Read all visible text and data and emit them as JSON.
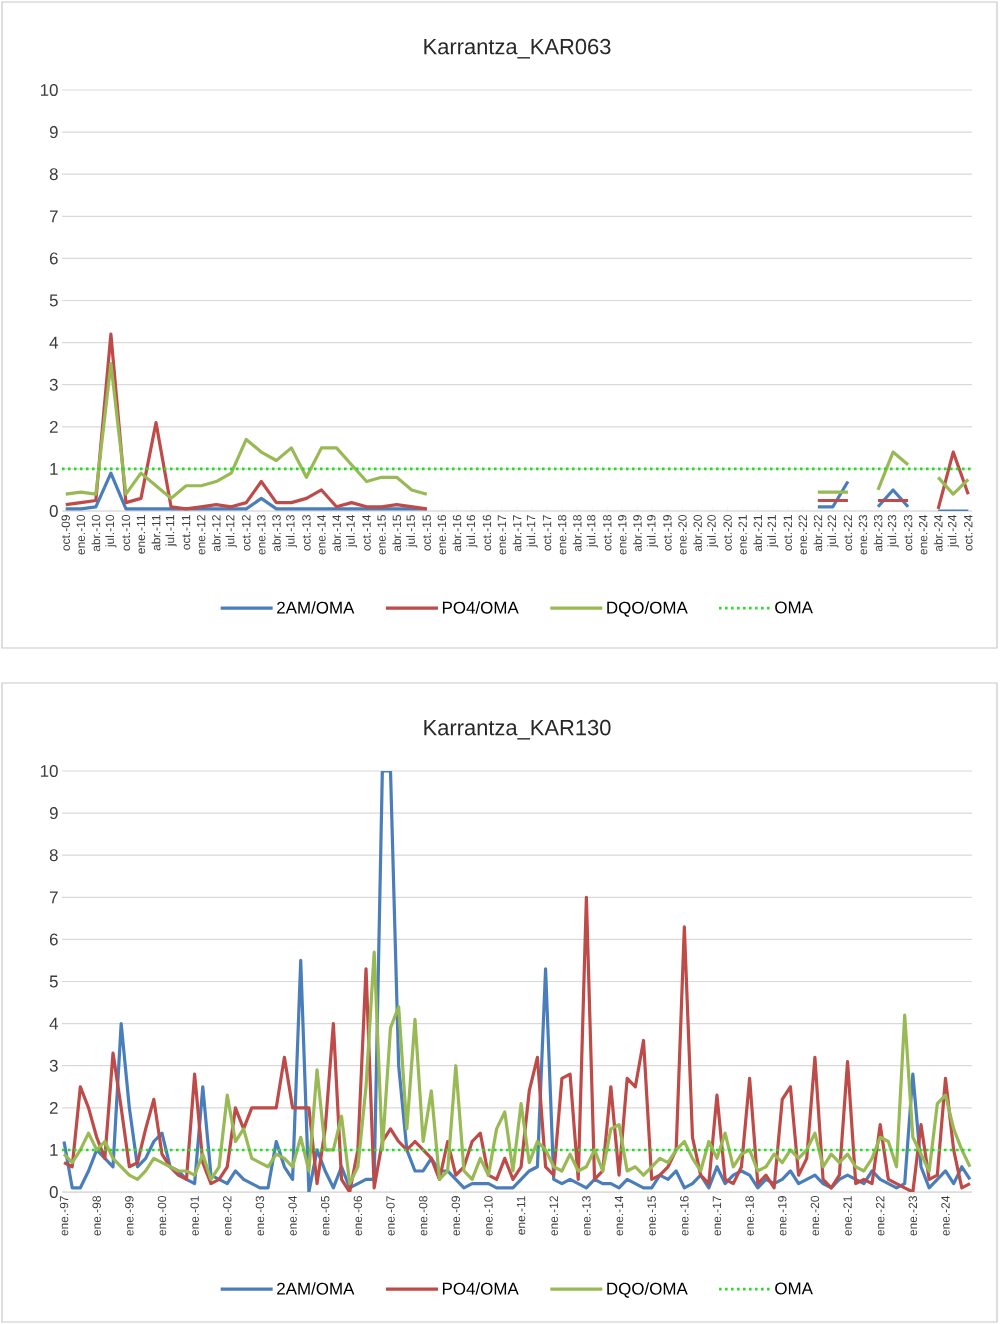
{
  "chart_data": [
    {
      "type": "line",
      "title": "Karrantza_KAR063",
      "categories": [
        "oct.-09",
        "ene.-10",
        "abr.-10",
        "jul.-10",
        "oct.-10",
        "ene.-11",
        "abr.-11",
        "jul.-11",
        "oct.-11",
        "ene.-12",
        "abr.-12",
        "jul.-12",
        "oct.-12",
        "ene.-13",
        "abr.-13",
        "jul.-13",
        "oct.-13",
        "ene.-14",
        "abr.-14",
        "jul.-14",
        "oct.-14",
        "ene.-15",
        "abr.-15",
        "jul.-15",
        "oct.-15",
        "ene.-16",
        "abr.-16",
        "jul.-16",
        "oct.-16",
        "ene.-17",
        "abr.-17",
        "jul.-17",
        "oct.-17",
        "ene.-18",
        "abr.-18",
        "jul.-18",
        "oct.-18",
        "ene.-19",
        "abr.-19",
        "jul.-19",
        "oct.-19",
        "ene.-20",
        "abr.-20",
        "jul.-20",
        "oct.-20",
        "ene.-21",
        "abr.-21",
        "jul.-21",
        "oct.-21",
        "ene.-22",
        "abr.-22",
        "jul.-22",
        "oct.-22",
        "ene.-23",
        "abr.-23",
        "jul.-23",
        "oct.-23",
        "ene.-24",
        "abr.-24",
        "jul.-24",
        "oct.-24"
      ],
      "series": [
        {
          "name": "2AM/OMA",
          "color": "#4a7ebb",
          "values": [
            0.05,
            0.05,
            0.1,
            0.9,
            0.05,
            0.05,
            0.05,
            0.05,
            0.05,
            0.05,
            0.05,
            0.05,
            0.05,
            0.3,
            0.05,
            0.05,
            0.05,
            0.05,
            0.05,
            0.05,
            0.05,
            0.05,
            0.05,
            0.05,
            0.05,
            null,
            null,
            null,
            null,
            null,
            null,
            null,
            null,
            null,
            null,
            null,
            null,
            null,
            null,
            null,
            null,
            null,
            null,
            null,
            null,
            null,
            null,
            null,
            null,
            null,
            0.1,
            0.1,
            0.7,
            null,
            0.1,
            0.5,
            0.1,
            null,
            0,
            0,
            0
          ]
        },
        {
          "name": "PO4/OMA",
          "color": "#be4b48",
          "values": [
            0.15,
            0.2,
            0.25,
            4.2,
            0.2,
            0.3,
            2.1,
            0.1,
            0.05,
            0.1,
            0.15,
            0.1,
            0.2,
            0.7,
            0.2,
            0.2,
            0.3,
            0.5,
            0.1,
            0.2,
            0.1,
            0.1,
            0.15,
            0.1,
            0.05,
            null,
            null,
            null,
            null,
            null,
            null,
            null,
            null,
            null,
            null,
            null,
            null,
            null,
            null,
            null,
            null,
            null,
            null,
            null,
            null,
            null,
            null,
            null,
            null,
            null,
            0.25,
            0.25,
            0.25,
            null,
            0.25,
            0.25,
            0.25,
            null,
            0.05,
            1.4,
            0.4
          ]
        },
        {
          "name": "DQO/OMA",
          "color": "#98b954",
          "values": [
            0.4,
            0.45,
            0.4,
            3.5,
            0.4,
            0.9,
            0.6,
            0.3,
            0.6,
            0.6,
            0.7,
            0.9,
            1.7,
            1.4,
            1.2,
            1.5,
            0.8,
            1.5,
            1.5,
            1.1,
            0.7,
            0.8,
            0.8,
            0.5,
            0.4,
            null,
            null,
            null,
            null,
            null,
            null,
            null,
            null,
            null,
            null,
            null,
            null,
            null,
            null,
            null,
            null,
            null,
            null,
            null,
            null,
            null,
            null,
            null,
            null,
            null,
            0.45,
            0.45,
            0.45,
            null,
            0.5,
            1.4,
            1.1,
            null,
            0.8,
            0.4,
            0.75
          ]
        }
      ],
      "ylim": [
        0,
        10
      ],
      "yticks": [
        0,
        1,
        2,
        3,
        4,
        5,
        6,
        7,
        8,
        9,
        10
      ],
      "grid": "y",
      "legend": "bottom",
      "line_style": "solid",
      "ref_lines": [
        {
          "axis": "y",
          "value": 1,
          "label": "OMA",
          "color": "#22dd22",
          "line_style": "dotted"
        }
      ]
    },
    {
      "type": "line",
      "title": "Karrantza_KAR130",
      "categories": [
        "ene.-97",
        null,
        null,
        null,
        "ene.-98",
        null,
        null,
        null,
        "ene.-99",
        null,
        null,
        null,
        "ene.-00",
        null,
        null,
        null,
        "ene.-01",
        null,
        null,
        null,
        "ene.-02",
        null,
        null,
        null,
        "ene.-03",
        null,
        null,
        null,
        "ene.-04",
        null,
        null,
        null,
        "ene.-05",
        null,
        null,
        null,
        "ene.-06",
        null,
        null,
        null,
        "ene.-07",
        null,
        null,
        null,
        "ene.-08",
        null,
        null,
        null,
        "ene.-09",
        null,
        null,
        null,
        "ene.-10",
        null,
        null,
        null,
        "ene.-11",
        null,
        null,
        null,
        "ene.-12",
        null,
        null,
        null,
        "ene.-13",
        null,
        null,
        null,
        "ene.-14",
        null,
        null,
        null,
        "ene.-15",
        null,
        null,
        null,
        "ene.-16",
        null,
        null,
        null,
        "ene.-17",
        null,
        null,
        null,
        "ene.-18",
        null,
        null,
        null,
        "ene.-19",
        null,
        null,
        null,
        "ene.-20",
        null,
        null,
        null,
        "ene.-21",
        null,
        null,
        null,
        "ene.-22",
        null,
        null,
        null,
        "ene.-23",
        null,
        null,
        null,
        "ene.-24",
        null,
        null,
        null
      ],
      "series": [
        {
          "name": "2AM/OMA",
          "color": "#4a7ebb",
          "values": [
            1.2,
            0.1,
            0.1,
            0.5,
            1.0,
            0.8,
            0.6,
            4.0,
            2.0,
            0.6,
            0.8,
            1.2,
            1.4,
            0.6,
            0.5,
            0.3,
            0.2,
            2.5,
            0.4,
            0.3,
            0.2,
            0.5,
            0.3,
            0.2,
            0.1,
            0.1,
            1.2,
            0.6,
            0.3,
            5.5,
            0,
            1.0,
            0.5,
            0.1,
            0.6,
            0.1,
            0.2,
            0.3,
            0.3,
            10,
            10,
            3.0,
            1.0,
            0.5,
            0.5,
            0.8,
            0.5,
            0.5,
            0.3,
            0.1,
            0.2,
            0.2,
            0.2,
            0.1,
            0.1,
            0.1,
            0.3,
            0.5,
            0.6,
            5.3,
            0.3,
            0.2,
            0.3,
            0.2,
            0.1,
            0.3,
            0.2,
            0.2,
            0.1,
            0.3,
            0.2,
            0.1,
            0.1,
            0.4,
            0.3,
            0.5,
            0.1,
            0.2,
            0.4,
            0.1,
            0.6,
            0.2,
            0.4,
            0.5,
            0.4,
            0.1,
            0.3,
            0.2,
            0.3,
            0.5,
            0.2,
            0.3,
            0.4,
            0.2,
            0.1,
            0.3,
            0.4,
            0.3,
            0.2,
            0.5,
            0.3,
            0.2,
            0.1,
            0.2,
            2.8,
            0.6,
            0.1,
            0.3,
            0.5,
            0.2,
            0.6,
            0.3
          ]
        },
        {
          "name": "PO4/OMA",
          "color": "#be4b48",
          "values": [
            0.7,
            0.6,
            2.5,
            2.0,
            1.3,
            0.8,
            3.3,
            2.0,
            0.6,
            0.7,
            1.5,
            2.2,
            0.9,
            0.6,
            0.4,
            0.3,
            2.8,
            0.7,
            0.2,
            0.3,
            0.6,
            2.0,
            1.5,
            2.0,
            2.0,
            2.0,
            2.0,
            3.2,
            2.0,
            2.0,
            2.0,
            0.2,
            1.5,
            4.0,
            0.3,
            0,
            1.0,
            5.3,
            0.1,
            1.2,
            1.5,
            1.2,
            1.0,
            1.2,
            1.0,
            0.8,
            0.3,
            1.2,
            0.4,
            0.6,
            1.2,
            1.4,
            0.4,
            0.3,
            0.8,
            0.3,
            0.6,
            2.4,
            3.2,
            0.6,
            0.4,
            2.7,
            2.8,
            0.3,
            7.0,
            0.3,
            0.5,
            2.5,
            0.4,
            2.7,
            2.5,
            3.6,
            0.3,
            0.4,
            0.6,
            1.0,
            6.3,
            1.3,
            0.4,
            0.2,
            2.3,
            0.3,
            0.2,
            0.6,
            2.7,
            0.2,
            0.4,
            0.1,
            2.2,
            2.5,
            0.4,
            0.8,
            3.2,
            0.3,
            0.1,
            0.4,
            3.1,
            0.2,
            0.3,
            0.2,
            1.6,
            0.3,
            0.2,
            0.1,
            0,
            1.6,
            0.3,
            0.4,
            2.7,
            1.0,
            0.1,
            0.2
          ]
        },
        {
          "name": "DQO/OMA",
          "color": "#98b954",
          "values": [
            0.9,
            0.7,
            1.0,
            1.4,
            1.0,
            1.2,
            0.8,
            0.6,
            0.4,
            0.3,
            0.5,
            0.8,
            0.7,
            0.6,
            0.5,
            0.5,
            0.4,
            0.9,
            0.3,
            0.6,
            2.3,
            1.2,
            1.5,
            0.8,
            0.7,
            0.6,
            0.9,
            0.8,
            0.6,
            1.3,
            0.5,
            2.9,
            1.0,
            1.0,
            1.8,
            0.2,
            0.6,
            2.5,
            5.7,
            1.0,
            3.9,
            4.4,
            1.5,
            4.1,
            1.2,
            2.4,
            0.3,
            0.5,
            3.0,
            0.5,
            0.3,
            0.8,
            0.4,
            1.5,
            1.9,
            0.5,
            2.1,
            0.7,
            1.2,
            1.0,
            0.6,
            0.5,
            0.9,
            0.5,
            0.6,
            1.0,
            0.5,
            1.5,
            1.6,
            0.5,
            0.6,
            0.4,
            0.6,
            0.8,
            0.7,
            1.0,
            1.2,
            0.8,
            0.5,
            1.2,
            0.8,
            1.4,
            0.6,
            0.9,
            1.0,
            0.5,
            0.6,
            0.9,
            0.7,
            1.0,
            0.8,
            1.0,
            1.4,
            0.6,
            0.9,
            0.7,
            0.9,
            0.6,
            0.5,
            0.8,
            1.3,
            1.2,
            0.6,
            4.2,
            1.3,
            0.9,
            0.5,
            2.1,
            2.3,
            1.5,
            1.0,
            0.6
          ]
        }
      ],
      "ylim": [
        0,
        10
      ],
      "yticks": [
        0,
        1,
        2,
        3,
        4,
        5,
        6,
        7,
        8,
        9,
        10
      ],
      "grid": "y",
      "legend": "bottom",
      "line_style": "solid",
      "ref_lines": [
        {
          "axis": "y",
          "value": 1,
          "label": "OMA",
          "color": "#22dd22",
          "line_style": "dotted"
        }
      ]
    }
  ]
}
